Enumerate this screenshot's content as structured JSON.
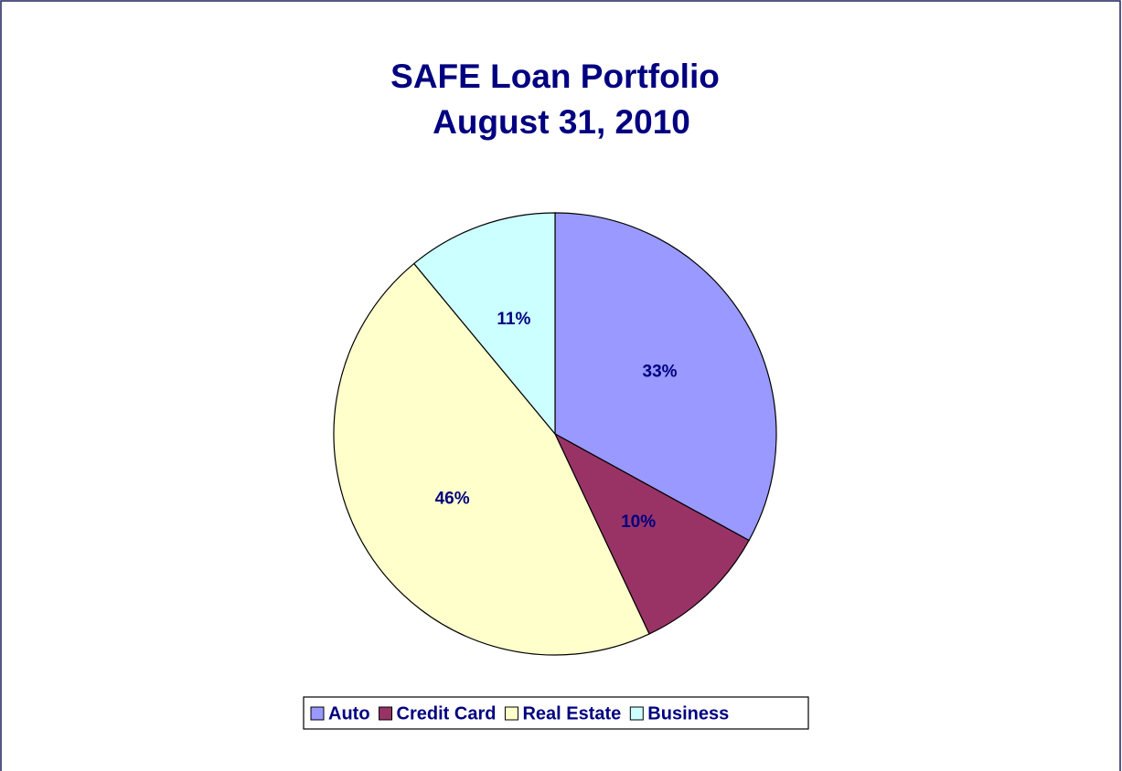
{
  "chart_data": {
    "type": "pie",
    "title": "SAFE Loan Portfolio",
    "subtitle": "August 31, 2010",
    "categories": [
      "Auto",
      "Credit Card",
      "Real Estate",
      "Business"
    ],
    "values": [
      33,
      10,
      46,
      11
    ],
    "value_labels": [
      "33%",
      "10%",
      "46%",
      "11%"
    ],
    "colors": [
      "#9999ff",
      "#993366",
      "#ffffcc",
      "#ccffff"
    ],
    "legend": "bottom"
  }
}
